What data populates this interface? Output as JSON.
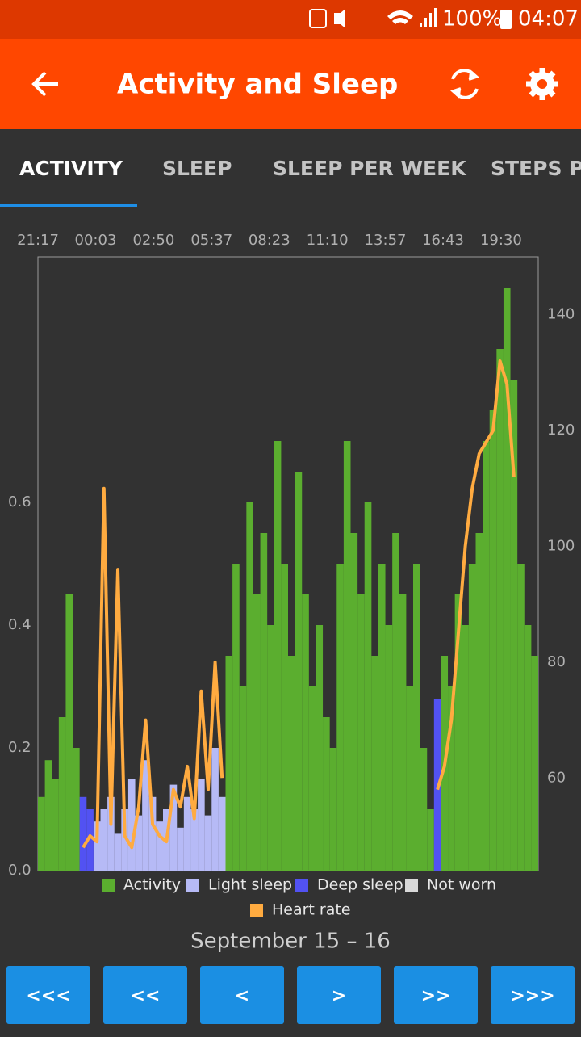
{
  "status_bar": {
    "battery": "100%",
    "time": "04:07"
  },
  "app_bar": {
    "title": "Activity and Sleep"
  },
  "tabs": [
    "ACTIVITY",
    "SLEEP",
    "SLEEP PER WEEK",
    "STEPS P"
  ],
  "chart_data": {
    "type": "bar",
    "x": [
      0,
      20,
      40,
      60,
      80,
      100,
      120,
      140,
      160,
      180,
      200,
      220,
      240,
      260,
      280,
      300,
      320,
      340,
      360,
      380,
      400,
      420,
      440,
      460,
      480,
      500,
      520,
      540,
      560,
      580,
      600,
      620,
      640,
      660,
      680,
      700,
      720,
      740,
      760,
      780,
      800,
      820,
      840,
      860,
      880,
      900,
      920,
      940,
      960,
      980,
      1000,
      1020,
      1040,
      1060,
      1080,
      1100,
      1120,
      1140,
      1160,
      1180,
      1200,
      1220,
      1240,
      1260,
      1280,
      1300,
      1320,
      1340,
      1360,
      1380,
      1400,
      1420
    ],
    "xlim": [
      0,
      1440
    ],
    "xticks": [
      {
        "value": 0,
        "label": "21:17"
      },
      {
        "value": 166,
        "label": "00:03"
      },
      {
        "value": 333,
        "label": "02:50"
      },
      {
        "value": 500,
        "label": "05:37"
      },
      {
        "value": 666,
        "label": "08:23"
      },
      {
        "value": 833,
        "label": "11:10"
      },
      {
        "value": 1000,
        "label": "13:57"
      },
      {
        "value": 1166,
        "label": "16:43"
      },
      {
        "value": 1333,
        "label": "19:30"
      }
    ],
    "ylim": [
      0,
      1.0
    ],
    "yticks": [
      {
        "value": 0,
        "label": "0.0"
      },
      0.2,
      0.4,
      0.6
    ],
    "y2lim": [
      44,
      150
    ],
    "y2ticks": [
      60,
      80,
      100,
      120,
      140
    ],
    "series": [
      {
        "name": "Activity",
        "color": "#5bae2f",
        "values": [
          0.12,
          0.18,
          0.15,
          0.25,
          0.45,
          0.2,
          0,
          0,
          0,
          0,
          0,
          0,
          0,
          0,
          0,
          0,
          0,
          0,
          0,
          0,
          0,
          0,
          0,
          0,
          0,
          0,
          0,
          0.35,
          0.5,
          0.3,
          0.6,
          0.45,
          0.55,
          0.4,
          0.7,
          0.5,
          0.35,
          0.65,
          0.45,
          0.3,
          0.4,
          0.25,
          0.2,
          0.5,
          0.7,
          0.55,
          0.45,
          0.6,
          0.35,
          0.5,
          0.4,
          0.55,
          0.45,
          0.3,
          0.5,
          0.2,
          0.1,
          0,
          0.35,
          0.3,
          0.45,
          0.4,
          0.5,
          0.55,
          0.7,
          0.75,
          0.85,
          0.95,
          0.8,
          0.5,
          0.4,
          0.35
        ]
      },
      {
        "name": "Light sleep",
        "color": "#b6baf6",
        "values": [
          0,
          0,
          0,
          0,
          0,
          0,
          0,
          0,
          0.08,
          0.1,
          0.12,
          0.06,
          0.1,
          0.15,
          0.09,
          0.18,
          0.12,
          0.08,
          0.1,
          0.14,
          0.07,
          0.12,
          0.1,
          0.15,
          0.09,
          0.2,
          0.12,
          0,
          0,
          0,
          0,
          0,
          0,
          0,
          0,
          0,
          0,
          0,
          0,
          0,
          0,
          0,
          0,
          0,
          0,
          0,
          0,
          0,
          0,
          0,
          0,
          0,
          0,
          0,
          0,
          0,
          0,
          0,
          0,
          0,
          0,
          0,
          0,
          0,
          0,
          0,
          0,
          0,
          0,
          0,
          0,
          0
        ]
      },
      {
        "name": "Deep sleep",
        "color": "#5252f2",
        "values": [
          0,
          0,
          0,
          0,
          0,
          0,
          0.12,
          0.1,
          0,
          0,
          0,
          0,
          0,
          0,
          0,
          0,
          0,
          0,
          0,
          0,
          0,
          0,
          0,
          0,
          0,
          0,
          0,
          0,
          0,
          0,
          0,
          0,
          0,
          0,
          0,
          0,
          0,
          0,
          0,
          0,
          0,
          0,
          0,
          0,
          0,
          0,
          0,
          0,
          0,
          0,
          0,
          0,
          0,
          0,
          0,
          0,
          0,
          0.28,
          0,
          0,
          0,
          0,
          0,
          0,
          0,
          0,
          0,
          0,
          0,
          0,
          0,
          0
        ]
      },
      {
        "name": "Not worn",
        "color": "#d9d9d9",
        "values": [
          0,
          0,
          0,
          0,
          0,
          0,
          0,
          0,
          0,
          0,
          0,
          0,
          0,
          0,
          0,
          0,
          0,
          0,
          0,
          0,
          0,
          0,
          0,
          0,
          0,
          0,
          0,
          0,
          0,
          0,
          0,
          0,
          0,
          0,
          0,
          0,
          0,
          0,
          0,
          0,
          0,
          0,
          0,
          0,
          0,
          0,
          0,
          0,
          0,
          0,
          0,
          0,
          0,
          0,
          0,
          0,
          0,
          0,
          0,
          0,
          0,
          0,
          0,
          0,
          0,
          0,
          0,
          0,
          0,
          0,
          0,
          0
        ]
      },
      {
        "name": "Heart rate",
        "color": "#ffab40",
        "axis": "y2",
        "type": "line",
        "values": [
          null,
          null,
          null,
          null,
          null,
          null,
          48,
          50,
          49,
          110,
          52,
          96,
          50,
          48,
          55,
          70,
          52,
          50,
          49,
          58,
          55,
          62,
          53,
          75,
          58,
          80,
          60,
          null,
          null,
          null,
          null,
          null,
          null,
          null,
          null,
          null,
          null,
          null,
          null,
          null,
          null,
          null,
          null,
          null,
          null,
          null,
          null,
          null,
          null,
          null,
          null,
          null,
          null,
          null,
          null,
          null,
          null,
          58,
          62,
          70,
          85,
          100,
          110,
          116,
          118,
          120,
          132,
          128,
          112,
          null,
          null,
          null
        ]
      }
    ]
  },
  "date_range": "September 15 – 16",
  "nav_buttons": [
    "<<<",
    "<<",
    "<",
    ">",
    ">>",
    ">>>"
  ]
}
